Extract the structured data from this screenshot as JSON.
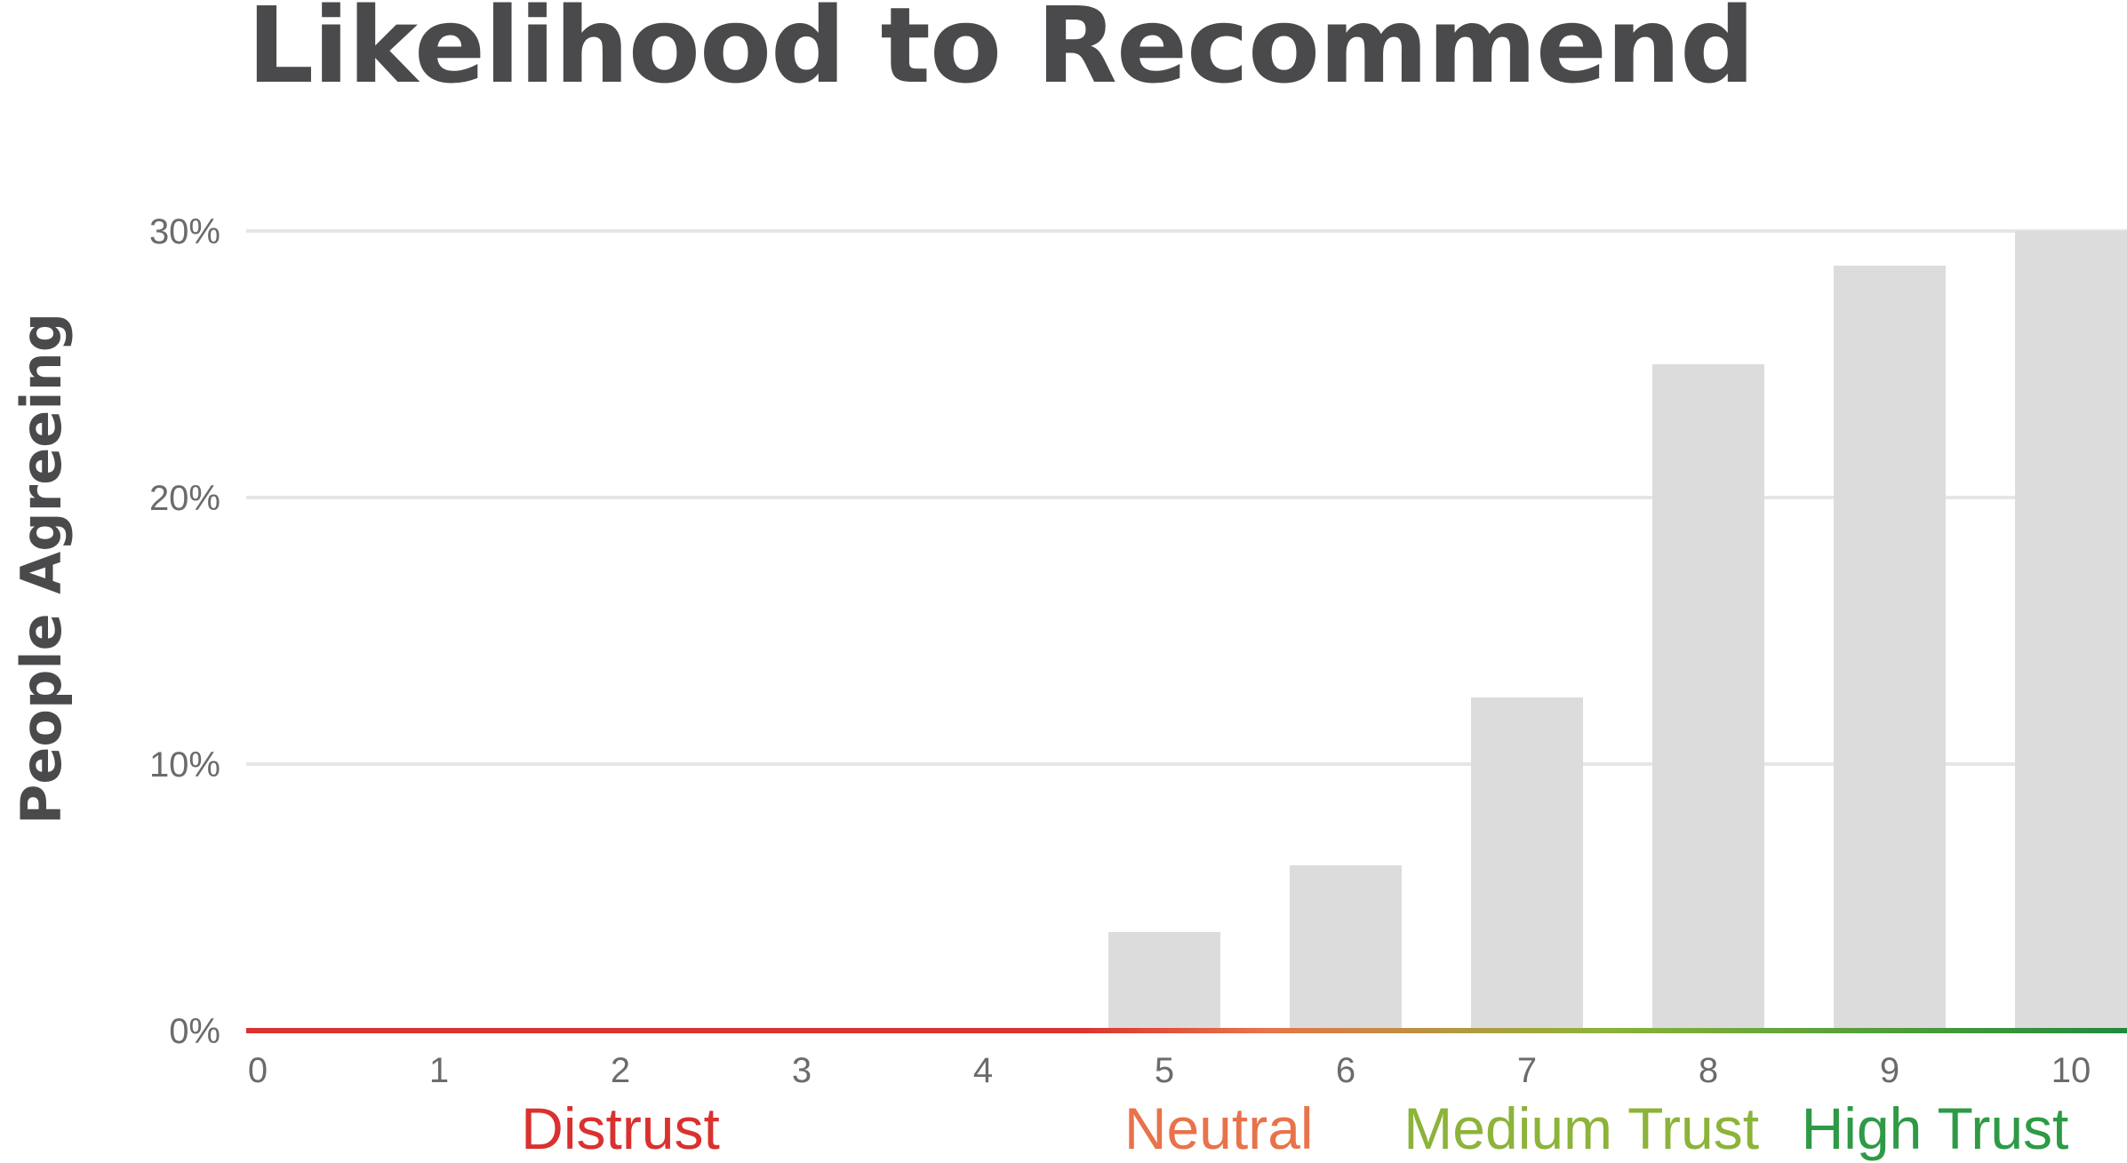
{
  "chart_data": {
    "type": "bar",
    "title": "Likelihood to Recommend",
    "xlabel": "",
    "ylabel": "People Agreeing",
    "categories": [
      "0",
      "1",
      "2",
      "3",
      "4",
      "5",
      "6",
      "7",
      "8",
      "9",
      "10"
    ],
    "values": [
      0,
      0,
      0,
      0,
      0,
      3.7,
      6.2,
      12.5,
      25.0,
      28.7,
      30.0
    ],
    "ylim": [
      0,
      30
    ],
    "yticks": [
      {
        "value": 0,
        "label": "0%"
      },
      {
        "value": 10,
        "label": "10%"
      },
      {
        "value": 20,
        "label": "20%"
      },
      {
        "value": 30,
        "label": "30%"
      }
    ],
    "grid": true,
    "zones": [
      {
        "label": "Distrust",
        "color": "#d9312f",
        "center": 2
      },
      {
        "label": "Neutral",
        "color": "#e8734a",
        "center": 5.3
      },
      {
        "label": "Medium Trust",
        "color": "#8cb33a",
        "center": 7.3
      },
      {
        "label": "High Trust",
        "color": "#2e9a45",
        "center": 9.25
      }
    ],
    "baseline_gradient": [
      "#d9312f",
      "#d9312f",
      "#e8734a",
      "#8cb33a",
      "#1f8a3c"
    ],
    "bar_color": "#dddcdd"
  }
}
